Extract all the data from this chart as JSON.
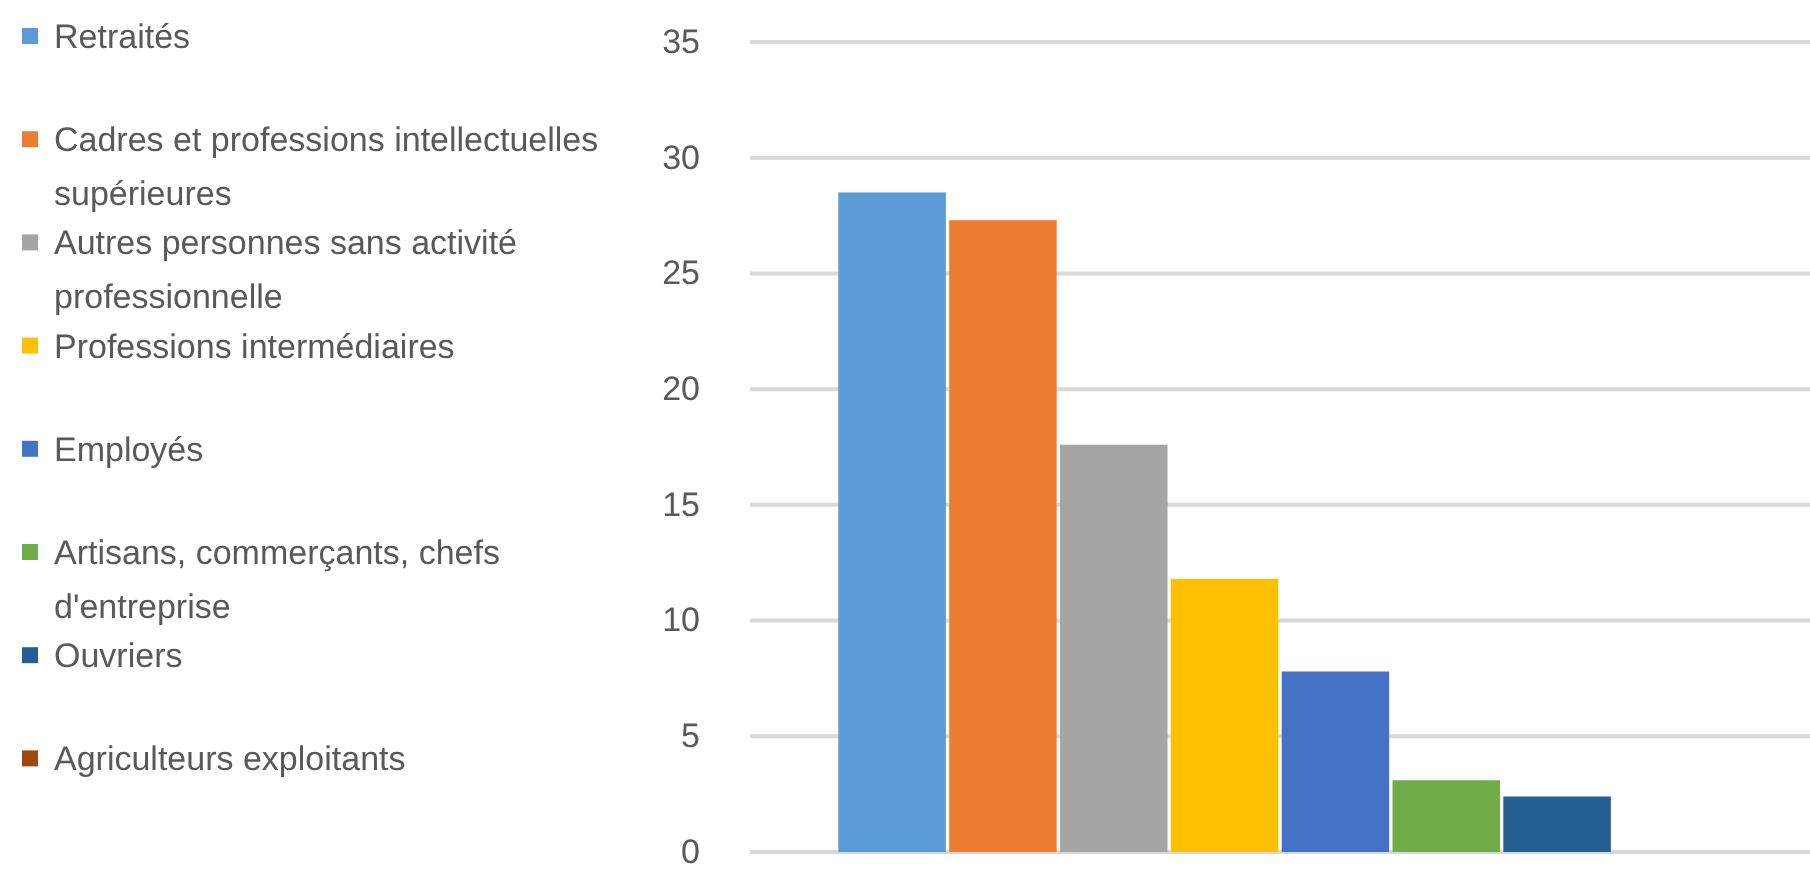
{
  "chart_data": {
    "type": "bar",
    "categories": [
      null
    ],
    "ylim": [
      0,
      35
    ],
    "yticks": [
      0,
      5,
      10,
      15,
      20,
      25,
      30,
      35
    ],
    "grid": "y",
    "legend": "left",
    "series": [
      {
        "name": "Retraités",
        "color": "#5b9bd5",
        "values": [
          28.5
        ]
      },
      {
        "name": "Cadres et professions intellectuelles supérieures",
        "color": "#ed7d31",
        "values": [
          27.3
        ]
      },
      {
        "name": "Autres personnes sans activité professionnelle",
        "color": "#a5a5a5",
        "values": [
          17.6
        ]
      },
      {
        "name": "Professions intermédiaires",
        "color": "#ffc000",
        "values": [
          11.8
        ]
      },
      {
        "name": "Employés",
        "color": "#4472c4",
        "values": [
          7.8
        ]
      },
      {
        "name": "Artisans, commerçants, chefs d'entreprise",
        "color": "#70ad47",
        "values": [
          3.1
        ]
      },
      {
        "name": "Ouvriers",
        "color": "#255e91",
        "values": [
          2.4
        ]
      },
      {
        "name": "Agriculteurs exploitants",
        "color": "#9e480e",
        "values": [
          0
        ]
      }
    ]
  }
}
